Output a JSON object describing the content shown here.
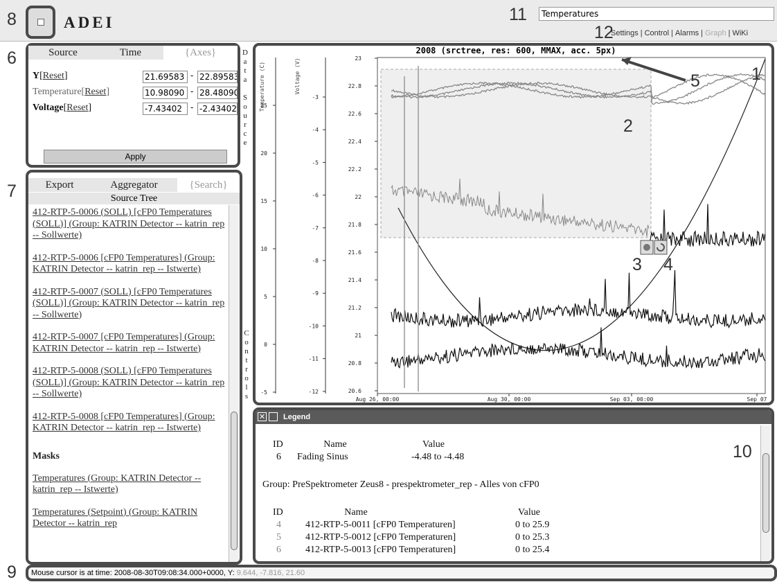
{
  "header": {
    "marker": "8",
    "title": "ADEI",
    "search_marker": "11",
    "search_value": "Temperatures",
    "menu_marker": "12",
    "menu": [
      "Settings",
      "Control",
      "Alarms",
      "Graph",
      "WiKi"
    ],
    "menu_separator": "|"
  },
  "axes_panel": {
    "marker": "6",
    "tabs": [
      "Source",
      "Time",
      "{Axes}"
    ],
    "bracket": [
      "[",
      "]"
    ],
    "separator": "-",
    "rows": [
      {
        "name": "Y",
        "reset": "Reset",
        "min": "21.69583",
        "max": "22.89583"
      },
      {
        "name": "Temperature",
        "reset": "Reset",
        "min": "10.98090",
        "max": "28.48090"
      },
      {
        "name": "Voltage",
        "reset": "Reset",
        "min": "-7.43402",
        "max": "-2.43402"
      }
    ],
    "apply": "Apply"
  },
  "side_labels": {
    "data_source": "Data Source",
    "controls": "Controls"
  },
  "tree_panel": {
    "marker": "7",
    "tabs": [
      "Export",
      "Aggregator",
      "{Search}"
    ],
    "title": "Source Tree",
    "items": [
      "412-RTP-5-0006 (SOLL) [cFP0 Temperatures (SOLL)] (Group: KATRIN Detector -- katrin_rep -- Sollwerte)",
      "412-RTP-5-0006 [cFP0 Temperatures] (Group: KATRIN Detector -- katrin_rep -- Istwerte)",
      "412-RTP-5-0007 (SOLL) [cFP0 Temperatures (SOLL)] (Group: KATRIN Detector -- katrin_rep -- Sollwerte)",
      "412-RTP-5-0007 [cFP0 Temperatures] (Group: KATRIN Detector -- katrin_rep -- Istwerte)",
      "412-RTP-5-0008 (SOLL) [cFP0 Temperatures (SOLL)] (Group: KATRIN Detector -- katrin_rep -- Sollwerte)",
      "412-RTP-5-0008 [cFP0 Temperatures] (Group: KATRIN Detector -- katrin_rep -- Istwerte)"
    ],
    "masks_title": "Masks",
    "masks": [
      "Temperatures (Group: KATRIN Detector -- katrin_rep -- Istwerte)",
      "Temperatures (Setpoint) (Group: KATRIN Detector -- katrin_rep"
    ]
  },
  "graph": {
    "marker": "1",
    "title": "2008 (srctree, res: 600, MMAX, acc. 5px)",
    "axis_titles": [
      "Temperature (C)",
      "Voltage (V)"
    ],
    "temperature_ticks": [
      "25",
      "20",
      "15",
      "10",
      "5",
      "0",
      "-5"
    ],
    "voltage_ticks": [
      "-3",
      "-4",
      "-5",
      "-6",
      "-7",
      "-8",
      "-9",
      "-10",
      "-11",
      "-12"
    ],
    "y_ticks": [
      "23",
      "22.8",
      "22.6",
      "22.4",
      "22.2",
      "22",
      "21.8",
      "21.6",
      "21.4",
      "21.2",
      "21",
      "20.8",
      "20.6"
    ],
    "x_ticks": [
      "Aug 26, 00:00",
      "Aug 30, 00:00",
      "Sep 03, 00:00",
      "Sep 07"
    ],
    "selection_marker": "2",
    "zoom_marker": "3",
    "reset_marker": "4",
    "title_marker": "5"
  },
  "legend": {
    "marker": "10",
    "title": "Legend",
    "columns": [
      "ID",
      "Name",
      "Value"
    ],
    "first_rows": [
      [
        "6",
        "Fading Sinus",
        "-4.48 to -4.48"
      ]
    ],
    "group": "Group: PreSpektrometer Zeus8 - prespektrometer_rep - Alles von cFP0",
    "group_rows": [
      [
        "4",
        "412-RTP-5-0011 [cFP0 Temperaturen]",
        "0 to 25.9"
      ],
      [
        "5",
        "412-RTP-5-0012 [cFP0 Temperaturen]",
        "0 to 25.3"
      ],
      [
        "6",
        "412-RTP-5-0013 [cFP0 Temperaturen]",
        "0 to 25.4"
      ]
    ]
  },
  "status": {
    "marker": "9",
    "text": "Mouse cursor is at time: 2008-08-30T09:08:34.000+0000, Y:",
    "values": "9.644, -7.816, 21.60"
  }
}
